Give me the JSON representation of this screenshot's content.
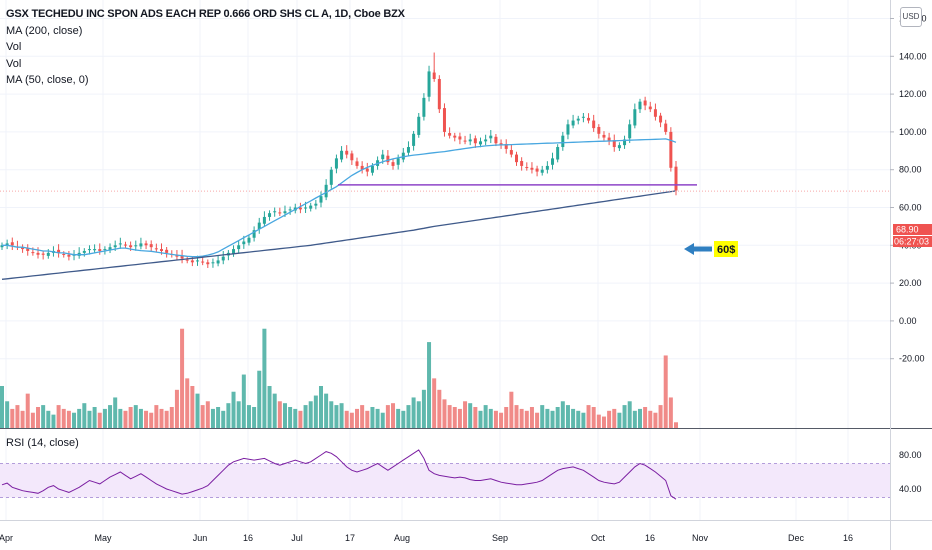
{
  "legend": {
    "title": "GSX TECHEDU INC SPON ADS EACH REP 0.666 ORD SHS CL A, 1D, Cboe BZX",
    "line2": "MA (200, close)",
    "line3": "Vol",
    "line4": "Vol",
    "line5": "MA (50, close, 0)"
  },
  "rsi_legend": "RSI (14, close)",
  "currency_button": "USD",
  "badges": {
    "price": "68.90",
    "countdown": "06:27:03",
    "annotation": "60$"
  },
  "colors": {
    "up": "#26a69a",
    "down": "#ef5350",
    "up_vol": "#5fb8ad",
    "down_vol": "#f08a88",
    "ma50": "#48a7e0",
    "ma200": "#3f5a8a",
    "support": "#8e44c8",
    "rsi": "#7b1fa2",
    "rsi_band": "#f3e8fb",
    "arrow": "#2f7fc1",
    "annotation_bg": "#ffff00",
    "price_badge": "#ef5350"
  },
  "chart_data": [
    {
      "type": "candlestick",
      "title": "GSX TECHEDU INC SPON ADS EACH REP 0.666 ORD SHS CL A, 1D, Cboe BZX",
      "x_ticks": [
        "Apr",
        "May",
        "Jun",
        "16",
        "Jul",
        "17",
        "Aug",
        "Sep",
        "Oct",
        "16",
        "Nov",
        "Dec",
        "16"
      ],
      "y_ticks": [
        "160.00",
        "140.00",
        "120.00",
        "100.00",
        "80.00",
        "60.00",
        "40.00",
        "20.00",
        "0.00",
        "-20.00"
      ],
      "ylim": [
        -20,
        160
      ],
      "current_price": 68.9,
      "support_level": 72,
      "annotation": "60$",
      "closes": [
        40,
        41,
        40,
        39,
        38,
        37,
        36,
        35,
        35,
        36,
        37,
        36,
        35,
        34,
        35,
        36,
        37,
        38,
        38,
        37,
        38,
        39,
        40,
        41,
        40,
        39,
        40,
        41,
        40,
        39,
        38,
        37,
        36,
        35,
        34,
        33,
        32,
        31,
        32,
        31,
        30,
        31,
        32,
        34,
        36,
        38,
        40,
        42,
        44,
        48,
        52,
        55,
        57,
        58,
        57,
        58,
        59,
        60,
        59,
        60,
        61,
        62,
        66,
        72,
        80,
        86,
        90,
        88,
        85,
        82,
        80,
        79,
        82,
        85,
        88,
        84,
        82,
        86,
        89,
        92,
        99,
        108,
        118,
        132,
        128,
        112,
        100,
        98,
        97,
        96,
        95,
        96,
        94,
        95,
        96,
        98,
        94,
        93,
        91,
        88,
        84,
        82,
        81,
        80,
        79,
        80,
        82,
        86,
        92,
        98,
        104,
        106,
        107,
        108,
        106,
        102,
        99,
        97,
        95,
        92,
        93,
        96,
        104,
        112,
        116,
        114,
        112,
        108,
        105,
        100,
        81,
        69
      ],
      "ma50": [
        40,
        40,
        39.5,
        39,
        39,
        38.5,
        38,
        37.5,
        37,
        37,
        36.5,
        36,
        36,
        35.5,
        35,
        35,
        35,
        35.5,
        36,
        36.5,
        37,
        37.5,
        38,
        38.5,
        38.5,
        38,
        37.5,
        37.2,
        37,
        36.8,
        36.4,
        36,
        35.6,
        35.2,
        34.8,
        34.5,
        34.2,
        34,
        34,
        34.3,
        34.8,
        35.5,
        36.5,
        38,
        39.5,
        41,
        42.5,
        44,
        45.5,
        47,
        48.5,
        50,
        51.5,
        53,
        54.5,
        56,
        57.5,
        59,
        60.5,
        62,
        63.5,
        65,
        66.5,
        68,
        69.5,
        71,
        73,
        75,
        77,
        78.5,
        80,
        81.2,
        82.3,
        83.3,
        84.2,
        85,
        85.7,
        86.3,
        86.8,
        87.3,
        87.7,
        88,
        88.3,
        88.7,
        89,
        89.3,
        89.6,
        90,
        90.4,
        90.8,
        91.2,
        91.6,
        92,
        92.3,
        92.6,
        92.8,
        93,
        93.1,
        93.2,
        93.3,
        93.4,
        93.5,
        93.6,
        93.7,
        93.8,
        93.9,
        94,
        94.1,
        94.2,
        94.3,
        94.4,
        94.5,
        94.6,
        94.7,
        94.8,
        94.9,
        95,
        95.1,
        95.2,
        95.3,
        95.4,
        95.5,
        95.6,
        95.7,
        95.8,
        95.9,
        96,
        96.1,
        96.2,
        96.3,
        95.5,
        94.5
      ],
      "ma200": [
        22,
        22.3,
        22.6,
        22.9,
        23.2,
        23.5,
        23.8,
        24.1,
        24.4,
        24.7,
        25,
        25.3,
        25.6,
        25.9,
        26.2,
        26.5,
        26.8,
        27.1,
        27.4,
        27.7,
        28,
        28.3,
        28.6,
        28.9,
        29.2,
        29.5,
        29.8,
        30.1,
        30.4,
        30.7,
        31,
        31.3,
        31.6,
        31.9,
        32.2,
        32.5,
        32.8,
        33.1,
        33.4,
        33.7,
        34,
        34.3,
        34.6,
        34.9,
        35.2,
        35.5,
        35.8,
        36.1,
        36.4,
        36.7,
        37,
        37.3,
        37.6,
        37.9,
        38.2,
        38.5,
        38.8,
        39.1,
        39.4,
        39.7,
        40,
        40.4,
        40.8,
        41.2,
        41.6,
        42,
        42.4,
        42.8,
        43.2,
        43.6,
        44,
        44.4,
        44.8,
        45.2,
        45.6,
        46,
        46.4,
        46.8,
        47.2,
        47.6,
        48,
        48.5,
        49,
        49.5,
        50,
        50.4,
        50.8,
        51.2,
        51.6,
        52,
        52.4,
        52.8,
        53.2,
        53.6,
        54,
        54.4,
        54.8,
        55.2,
        55.6,
        56,
        56.4,
        56.8,
        57.2,
        57.6,
        58,
        58.4,
        58.8,
        59.2,
        59.6,
        60,
        60.4,
        60.8,
        61.2,
        61.6,
        62,
        62.4,
        62.8,
        63.2,
        63.6,
        64,
        64.4,
        64.8,
        65.2,
        65.6,
        66,
        66.4,
        66.8,
        67.2,
        67.6,
        68,
        68.4,
        68.8
      ],
      "volumes": [
        22,
        14,
        10,
        12,
        9,
        18,
        8,
        11,
        12,
        9,
        7,
        12,
        10,
        9,
        8,
        10,
        13,
        9,
        11,
        8,
        10,
        12,
        16,
        10,
        9,
        11,
        12,
        10,
        9,
        8,
        12,
        10,
        9,
        11,
        20,
        52,
        26,
        22,
        18,
        12,
        14,
        10,
        11,
        9,
        13,
        19,
        14,
        28,
        12,
        11,
        30,
        52,
        22,
        18,
        14,
        13,
        11,
        10,
        9,
        12,
        14,
        17,
        22,
        18,
        14,
        12,
        13,
        9,
        8,
        10,
        12,
        9,
        11,
        10,
        8,
        12,
        13,
        10,
        9,
        12,
        16,
        14,
        20,
        45,
        26,
        20,
        15,
        12,
        11,
        10,
        14,
        13,
        11,
        9,
        12,
        10,
        9,
        8,
        11,
        19,
        12,
        10,
        9,
        11,
        8,
        12,
        10,
        9,
        11,
        14,
        12,
        10,
        9,
        8,
        12,
        11,
        7,
        6,
        9,
        10,
        8,
        12,
        14,
        9,
        10,
        11,
        9,
        8,
        12,
        38,
        16,
        3
      ],
      "rsi_ticks": [
        "80.00",
        "40.00"
      ],
      "rsi": [
        45,
        47,
        42,
        40,
        38,
        37,
        36,
        35,
        38,
        42,
        44,
        40,
        38,
        36,
        39,
        42,
        46,
        50,
        48,
        46,
        50,
        54,
        57,
        60,
        56,
        52,
        55,
        58,
        54,
        50,
        46,
        43,
        40,
        38,
        36,
        34,
        35,
        37,
        39,
        41,
        44,
        50,
        56,
        62,
        68,
        72,
        74,
        76,
        75,
        74,
        75,
        76,
        73,
        70,
        68,
        70,
        72,
        74,
        72,
        70,
        72,
        76,
        80,
        84,
        82,
        78,
        72,
        66,
        62,
        60,
        62,
        64,
        67,
        70,
        66,
        62,
        66,
        70,
        74,
        78,
        82,
        86,
        76,
        62,
        58,
        56,
        55,
        54,
        53,
        54,
        53,
        51,
        50,
        50,
        51,
        52,
        50,
        48,
        47,
        46,
        45,
        45,
        46,
        47,
        48,
        50,
        54,
        58,
        62,
        64,
        65,
        66,
        64,
        62,
        58,
        54,
        50,
        48,
        47,
        46,
        48,
        54,
        60,
        66,
        70,
        68,
        64,
        60,
        55,
        50,
        32,
        28
      ]
    }
  ]
}
